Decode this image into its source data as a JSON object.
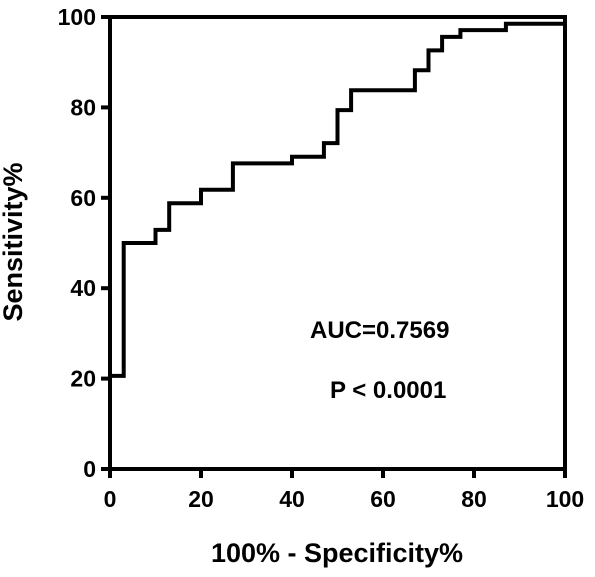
{
  "chart_data": {
    "type": "line",
    "title": "",
    "xlabel": "100% - Specificity%",
    "ylabel": "Sensitivity%",
    "xlim": [
      0,
      100
    ],
    "ylim": [
      0,
      100
    ],
    "xticks": [
      "0",
      "20",
      "40",
      "60",
      "80",
      "100"
    ],
    "yticks": [
      "0",
      "20",
      "40",
      "60",
      "80",
      "100"
    ],
    "grid": false,
    "series": [
      {
        "color": "#000000",
        "x": [
          0,
          0,
          3,
          3,
          10,
          10,
          13,
          13,
          20,
          20,
          27,
          27,
          40,
          40,
          47,
          47,
          50,
          50,
          53,
          53,
          67,
          67,
          70,
          70,
          73,
          73,
          77,
          77,
          87,
          87,
          100
        ],
        "y": [
          0,
          20.6,
          20.6,
          50,
          50,
          52.9,
          52.9,
          58.8,
          58.8,
          61.8,
          61.8,
          67.6,
          67.6,
          69.1,
          69.1,
          72.1,
          72.1,
          79.4,
          79.4,
          83.8,
          83.8,
          88.2,
          88.2,
          92.6,
          92.6,
          95.6,
          95.6,
          97.1,
          97.1,
          98.5,
          98.5
        ]
      }
    ],
    "annotations": {
      "auc": "AUC=0.7569",
      "p_value": "P < 0.0001"
    }
  }
}
